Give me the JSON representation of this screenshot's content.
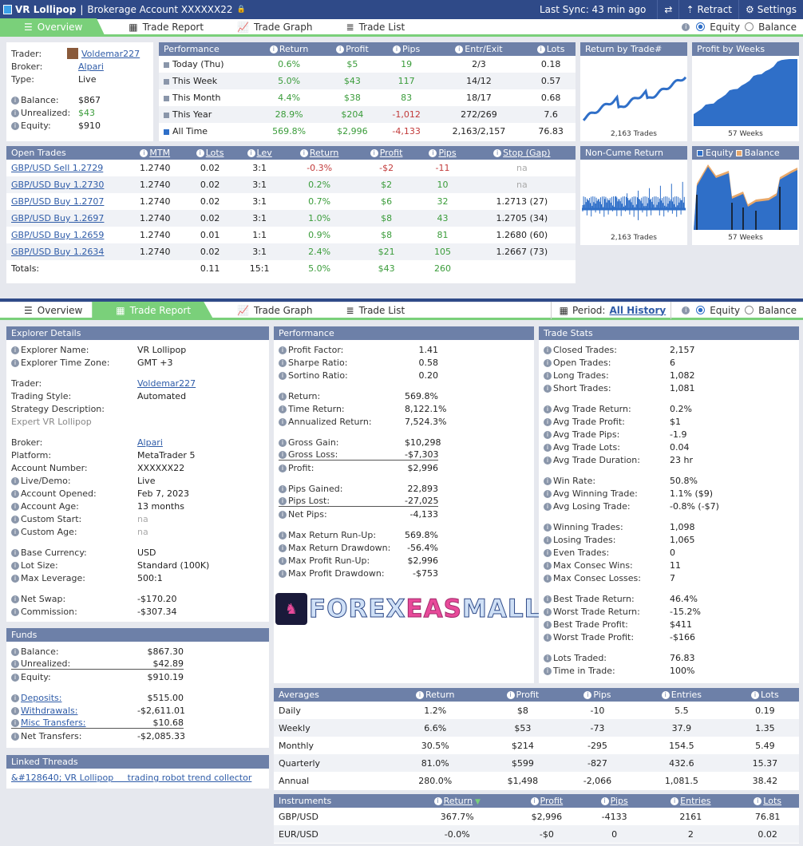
{
  "top": {
    "title": "VR Lollipop",
    "account": "Brokerage Account XXXXXX22",
    "sync": "Last Sync: 43 min ago",
    "retract": "Retract",
    "settings": "Settings"
  },
  "tabs": {
    "overview": "Overview",
    "trade_report": "Trade Report",
    "trade_graph": "Trade Graph",
    "trade_list": "Trade List",
    "equity": "Equity",
    "balance": "Balance",
    "period_label": "Period:",
    "period_value": "All History"
  },
  "summary": {
    "trader_k": "Trader:",
    "trader_v": "Voldemar227",
    "broker_k": "Broker:",
    "broker_v": "Alpari",
    "type_k": "Type:",
    "type_v": "Live",
    "balance_k": "Balance:",
    "balance_v": "$867",
    "unreal_k": "Unrealized:",
    "unreal_v": "$43",
    "equity_k": "Equity:",
    "equity_v": "$910"
  },
  "perf": {
    "headers": [
      "Performance",
      "Return",
      "Profit",
      "Pips",
      "Entr/Exit",
      "Lots"
    ],
    "rows": [
      [
        "Today (Thu)",
        "0.6%",
        "$5",
        "19",
        "2/3",
        "0.18"
      ],
      [
        "This Week",
        "5.0%",
        "$43",
        "117",
        "14/12",
        "0.57"
      ],
      [
        "This Month",
        "4.4%",
        "$38",
        "83",
        "18/17",
        "0.68"
      ],
      [
        "This Year",
        "28.9%",
        "$204",
        "-1,012",
        "272/269",
        "7.6"
      ],
      [
        "All Time",
        "569.8%",
        "$2,996",
        "-4,133",
        "2,163/2,157",
        "76.83"
      ]
    ]
  },
  "open": {
    "headers": [
      "Open Trades",
      "MTM",
      "Lots",
      "Lev",
      "Return",
      "Profit",
      "Pips",
      "Stop (Gap)"
    ],
    "rows": [
      [
        "GBP/USD Sell 1.2729",
        "1.2740",
        "0.02",
        "3:1",
        "-0.3%",
        "-$2",
        "-11",
        "na"
      ],
      [
        "GBP/USD Buy 1.2730",
        "1.2740",
        "0.02",
        "3:1",
        "0.2%",
        "$2",
        "10",
        "na"
      ],
      [
        "GBP/USD Buy 1.2707",
        "1.2740",
        "0.02",
        "3:1",
        "0.7%",
        "$6",
        "32",
        "1.2713 (27)"
      ],
      [
        "GBP/USD Buy 1.2697",
        "1.2740",
        "0.02",
        "3:1",
        "1.0%",
        "$8",
        "43",
        "1.2705 (34)"
      ],
      [
        "GBP/USD Buy 1.2659",
        "1.2740",
        "0.01",
        "1:1",
        "0.9%",
        "$8",
        "81",
        "1.2680 (60)"
      ],
      [
        "GBP/USD Buy 1.2634",
        "1.2740",
        "0.02",
        "3:1",
        "2.4%",
        "$21",
        "105",
        "1.2667 (73)"
      ]
    ],
    "totals": [
      "Totals:",
      "",
      "0.11",
      "15:1",
      "5.0%",
      "$43",
      "260",
      ""
    ]
  },
  "charts": {
    "c1_title": "Return by Trade#",
    "c1_cap": "2,163 Trades",
    "c2_title": "Profit by Weeks",
    "c2_cap": "57 Weeks",
    "c3_title": "Non-Cume Return",
    "c3_cap": "2,163 Trades",
    "c4_equity": "Equity",
    "c4_balance": "Balance",
    "c4_cap": "57 Weeks",
    "blue": "#2f6fc8",
    "orange": "#e8a86a"
  },
  "explorer": {
    "title": "Explorer Details",
    "items": [
      [
        "Explorer Name:",
        "VR Lollipop",
        "i"
      ],
      [
        "Explorer Time Zone:",
        "GMT +3",
        "i"
      ],
      [
        "",
        "",
        ""
      ],
      [
        "Trader:",
        "Voldemar227",
        "l"
      ],
      [
        "Trading Style:",
        "Automated",
        ""
      ],
      [
        "Strategy Description:",
        "",
        ""
      ],
      [
        "Expert VR Lollipop",
        "",
        "d"
      ],
      [
        "",
        "",
        ""
      ],
      [
        "Broker:",
        "Alpari",
        "l"
      ],
      [
        "Platform:",
        "MetaTrader 5",
        ""
      ],
      [
        "Account Number:",
        "XXXXXX22",
        ""
      ],
      [
        "Live/Demo:",
        "Live",
        "i"
      ],
      [
        "Account Opened:",
        "Feb 7, 2023",
        "i"
      ],
      [
        "Account Age:",
        "13 months",
        "i"
      ],
      [
        "Custom Start:",
        "na",
        "in"
      ],
      [
        "Custom Age:",
        "na",
        "in"
      ],
      [
        "",
        "",
        ""
      ],
      [
        "Base Currency:",
        "USD",
        "i"
      ],
      [
        "Lot Size:",
        "Standard (100K)",
        "i"
      ],
      [
        "Max Leverage:",
        "500:1",
        "i"
      ],
      [
        "",
        "",
        ""
      ],
      [
        "Net Swap:",
        "-$170.20",
        "i"
      ],
      [
        "Commission:",
        "-$307.34",
        "i"
      ]
    ]
  },
  "funds": {
    "title": "Funds",
    "items": [
      [
        "Balance:",
        "$867.30"
      ],
      [
        "Unrealized:",
        "$42.89"
      ],
      [
        "Equity:",
        "$910.19"
      ],
      [
        "",
        ""
      ],
      [
        "Deposits:",
        "$515.00"
      ],
      [
        "Withdrawals:",
        "-$2,611.01"
      ],
      [
        "Misc Transfers:",
        "$10.68"
      ],
      [
        "Net Transfers:",
        "-$2,085.33"
      ]
    ]
  },
  "threads": {
    "title": "Linked Threads",
    "link": "&#128640; VR Lollipop     trading robot trend collector"
  },
  "performance": {
    "title": "Performance",
    "items": [
      [
        "Profit Factor:",
        "1.41"
      ],
      [
        "Sharpe Ratio:",
        "0.58"
      ],
      [
        "Sortino Ratio:",
        "0.20"
      ],
      [
        "",
        ""
      ],
      [
        "Return:",
        "569.8%"
      ],
      [
        "Time Return:",
        "8,122.1%"
      ],
      [
        "Annualized Return:",
        "7,524.3%"
      ],
      [
        "",
        ""
      ],
      [
        "Gross Gain:",
        "$10,298"
      ],
      [
        "Gross Loss:",
        "-$7,303"
      ],
      [
        "Profit:",
        "$2,996"
      ],
      [
        "",
        ""
      ],
      [
        "Pips Gained:",
        "22,893"
      ],
      [
        "Pips Lost:",
        "-27,025"
      ],
      [
        "Net Pips:",
        "-4,133"
      ],
      [
        "",
        ""
      ],
      [
        "Max Return Run-Up:",
        "569.8%"
      ],
      [
        "Max Return Drawdown:",
        "-56.4%"
      ],
      [
        "Max Profit Run-Up:",
        "$2,996"
      ],
      [
        "Max Profit Drawdown:",
        "-$753"
      ]
    ]
  },
  "logo": {
    "text_a": "FOREX",
    "text_b": "EAS",
    "text_c": "MALL",
    "badge": "FOREX EAS MALL"
  },
  "stats": {
    "title": "Trade Stats",
    "items": [
      [
        "Closed Trades:",
        "2,157"
      ],
      [
        "Open Trades:",
        "6"
      ],
      [
        "Long Trades:",
        "1,082"
      ],
      [
        "Short Trades:",
        "1,081"
      ],
      [
        "",
        ""
      ],
      [
        "Avg Trade Return:",
        "0.2%"
      ],
      [
        "Avg Trade Profit:",
        "$1"
      ],
      [
        "Avg Trade Pips:",
        "-1.9"
      ],
      [
        "Avg Trade Lots:",
        "0.04"
      ],
      [
        "Avg Trade Duration:",
        "23 hr"
      ],
      [
        "",
        ""
      ],
      [
        "Win Rate:",
        "50.8%"
      ],
      [
        "Avg Winning Trade:",
        "1.1% ($9)"
      ],
      [
        "Avg Losing Trade:",
        "-0.8% (-$7)"
      ],
      [
        "",
        ""
      ],
      [
        "Winning Trades:",
        "1,098"
      ],
      [
        "Losing Trades:",
        "1,065"
      ],
      [
        "Even Trades:",
        "0"
      ],
      [
        "Max Consec Wins:",
        "11"
      ],
      [
        "Max Consec Losses:",
        "7"
      ],
      [
        "",
        ""
      ],
      [
        "Best Trade Return:",
        "46.4%"
      ],
      [
        "Worst Trade Return:",
        "-15.2%"
      ],
      [
        "Best Trade Profit:",
        "$411"
      ],
      [
        "Worst Trade Profit:",
        "-$166"
      ],
      [
        "",
        ""
      ],
      [
        "Lots Traded:",
        "76.83"
      ],
      [
        "Time in Trade:",
        "100%"
      ]
    ]
  },
  "averages": {
    "headers": [
      "Averages",
      "Return",
      "Profit",
      "Pips",
      "Entries",
      "Lots"
    ],
    "rows": [
      [
        "Daily",
        "1.2%",
        "$8",
        "-10",
        "5.5",
        "0.19"
      ],
      [
        "Weekly",
        "6.6%",
        "$53",
        "-73",
        "37.9",
        "1.35"
      ],
      [
        "Monthly",
        "30.5%",
        "$214",
        "-295",
        "154.5",
        "5.49"
      ],
      [
        "Quarterly",
        "81.0%",
        "$599",
        "-827",
        "432.6",
        "15.37"
      ],
      [
        "Annual",
        "280.0%",
        "$1,498",
        "-2,066",
        "1,081.5",
        "38.42"
      ]
    ]
  },
  "instruments": {
    "headers": [
      "Instruments",
      "Return",
      "Profit",
      "Pips",
      "Entries",
      "Lots"
    ],
    "rows": [
      [
        "GBP/USD",
        "367.7%",
        "$2,996",
        "-4133",
        "2161",
        "76.81"
      ],
      [
        "EUR/USD",
        "-0.0%",
        "-$0",
        "0",
        "2",
        "0.02"
      ]
    ]
  }
}
